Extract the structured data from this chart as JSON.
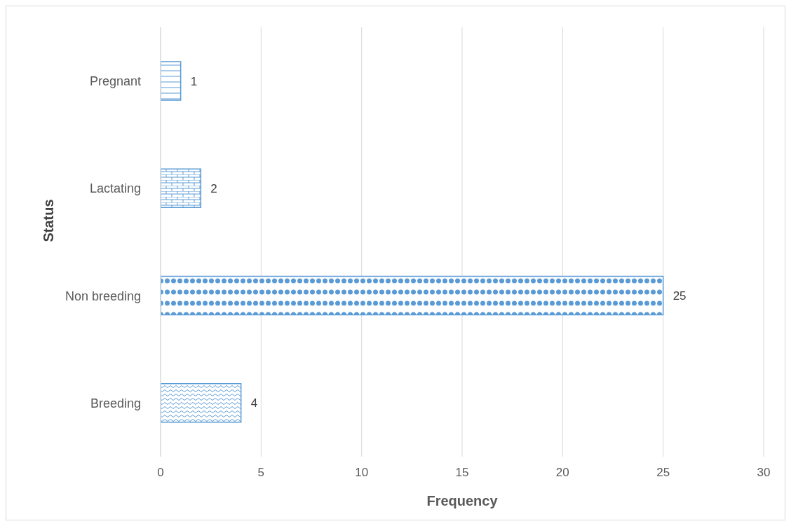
{
  "chart_data": {
    "type": "bar",
    "orientation": "horizontal",
    "xlabel": "Frequency",
    "ylabel": "Status",
    "categories": [
      "Pregnant",
      "Lactating",
      "Non breeding",
      "Breeding"
    ],
    "values": [
      1,
      2,
      25,
      4
    ],
    "color": "#5b9bd5",
    "xlim": [
      0,
      30
    ],
    "xticks": [
      0,
      5,
      10,
      15,
      20,
      25,
      30
    ],
    "grid": "x",
    "data_labels": true,
    "legend": false
  }
}
